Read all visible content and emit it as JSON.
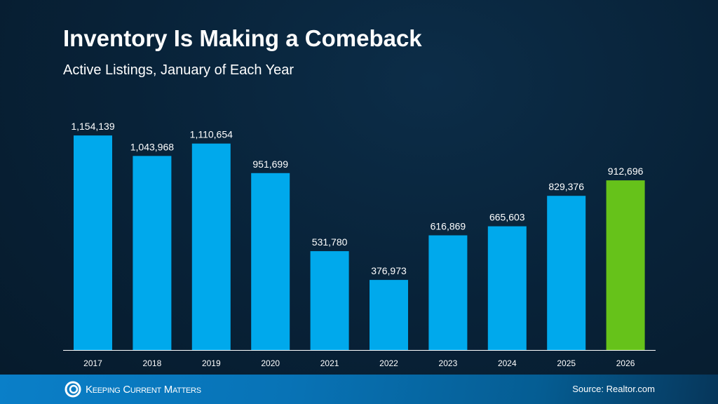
{
  "chart_data": {
    "type": "bar",
    "title": "Inventory Is Making a Comeback",
    "subtitle": "Active Listings, January of Each Year",
    "categories": [
      "2017",
      "2018",
      "2019",
      "2020",
      "2021",
      "2022",
      "2023",
      "2024",
      "2025",
      "2026"
    ],
    "values": [
      1154139,
      1043968,
      1110654,
      951699,
      531780,
      376973,
      616869,
      665603,
      829376,
      912696
    ],
    "labels": [
      "1,154,139",
      "1,043,968",
      "1,110,654",
      "951,699",
      "531,780",
      "376,973",
      "616,869",
      "665,603",
      "829,376",
      "912,696"
    ],
    "ylim": [
      0,
      1200000
    ],
    "grid": false,
    "colors": {
      "default": "#00a9ec",
      "highlight": "#66c21a"
    },
    "highlight_index": 9
  },
  "footer": {
    "brand": "Keeping Current Matters",
    "source": "Source: Realtor.com"
  }
}
